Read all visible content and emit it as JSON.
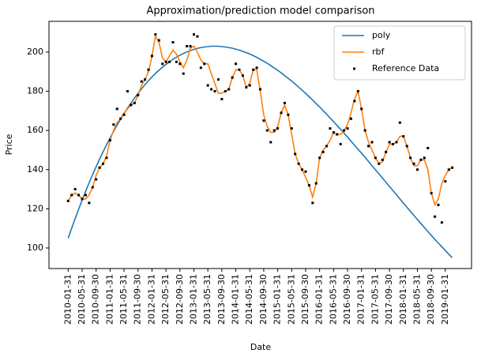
{
  "chart_data": {
    "type": "line",
    "title": "Approximation/prediction model comparison",
    "xlabel": "Date",
    "ylabel": "Price",
    "x": [
      "2010-01-31",
      "2010-02-28",
      "2010-03-31",
      "2010-04-30",
      "2010-05-31",
      "2010-06-30",
      "2010-07-31",
      "2010-08-31",
      "2010-09-30",
      "2010-10-31",
      "2010-11-30",
      "2010-12-31",
      "2011-01-31",
      "2011-02-28",
      "2011-03-31",
      "2011-04-30",
      "2011-05-31",
      "2011-06-30",
      "2011-07-31",
      "2011-08-31",
      "2011-09-30",
      "2011-10-31",
      "2011-11-30",
      "2011-12-31",
      "2012-01-31",
      "2012-02-29",
      "2012-03-31",
      "2012-04-30",
      "2012-05-31",
      "2012-06-30",
      "2012-07-31",
      "2012-08-31",
      "2012-09-30",
      "2012-10-31",
      "2012-11-30",
      "2012-12-31",
      "2013-01-31",
      "2013-02-28",
      "2013-03-31",
      "2013-04-30",
      "2013-05-31",
      "2013-06-30",
      "2013-07-31",
      "2013-08-31",
      "2013-09-30",
      "2013-10-31",
      "2013-11-30",
      "2013-12-31",
      "2014-01-31",
      "2014-02-28",
      "2014-03-31",
      "2014-04-30",
      "2014-05-31",
      "2014-06-30",
      "2014-07-31",
      "2014-08-31",
      "2014-09-30",
      "2014-10-31",
      "2014-11-30",
      "2014-12-31",
      "2015-01-31",
      "2015-02-28",
      "2015-03-31",
      "2015-04-30",
      "2015-05-31",
      "2015-06-30",
      "2015-07-31",
      "2015-08-31",
      "2015-09-30",
      "2015-10-31",
      "2015-11-30",
      "2015-12-31",
      "2016-01-31",
      "2016-02-29",
      "2016-03-31",
      "2016-04-30",
      "2016-05-31",
      "2016-06-30",
      "2016-07-31",
      "2016-08-31",
      "2016-09-30",
      "2016-10-31",
      "2016-11-30",
      "2016-12-31",
      "2017-01-31",
      "2017-02-28",
      "2017-03-31",
      "2017-04-30",
      "2017-05-31",
      "2017-06-30",
      "2017-07-31",
      "2017-08-31",
      "2017-09-30",
      "2017-10-31",
      "2017-11-30",
      "2017-12-31",
      "2018-01-31",
      "2018-02-28",
      "2018-03-31",
      "2018-04-30",
      "2018-05-31",
      "2018-06-30",
      "2018-07-31",
      "2018-08-31",
      "2018-09-30",
      "2018-10-31",
      "2018-11-30",
      "2018-12-31",
      "2019-01-31",
      "2019-02-28",
      "2019-03-31"
    ],
    "xticks": [
      "2010-01-31",
      "2010-05-31",
      "2010-09-30",
      "2011-01-31",
      "2011-05-31",
      "2011-09-30",
      "2012-01-31",
      "2012-05-31",
      "2012-09-30",
      "2013-01-31",
      "2013-05-31",
      "2013-09-30",
      "2014-01-31",
      "2014-05-31",
      "2014-09-30",
      "2015-01-31",
      "2015-05-31",
      "2015-09-30",
      "2016-01-31",
      "2016-05-31",
      "2016-09-30",
      "2017-01-31",
      "2017-05-31",
      "2017-09-30",
      "2018-01-31",
      "2018-05-31",
      "2018-09-30",
      "2019-01-31"
    ],
    "ylim": [
      89.5,
      215.7
    ],
    "yticks": [
      100,
      120,
      140,
      160,
      180,
      200
    ],
    "legend": "upper right",
    "series": [
      {
        "name": "poly",
        "type": "line",
        "color": "#1f77b4",
        "values": [
          105.0,
          110.1,
          115.0,
          119.8,
          124.5,
          128.9,
          133.3,
          137.5,
          141.5,
          145.4,
          149.1,
          152.7,
          156.2,
          159.5,
          162.7,
          165.7,
          168.6,
          171.4,
          174.0,
          176.6,
          178.9,
          181.2,
          183.4,
          185.4,
          187.3,
          189.1,
          190.7,
          192.3,
          193.7,
          195.0,
          196.3,
          197.4,
          198.4,
          199.3,
          200.1,
          200.8,
          201.4,
          201.9,
          202.3,
          202.6,
          202.8,
          203.0,
          203.0,
          203.0,
          202.8,
          202.6,
          202.3,
          202.0,
          201.5,
          201.0,
          200.4,
          199.7,
          199.0,
          198.2,
          197.3,
          196.3,
          195.3,
          194.3,
          193.1,
          191.9,
          190.7,
          189.4,
          188.0,
          186.6,
          185.2,
          183.7,
          182.1,
          180.5,
          178.9,
          177.2,
          175.5,
          173.7,
          172.0,
          170.1,
          168.3,
          166.4,
          164.5,
          162.5,
          160.6,
          158.6,
          156.6,
          154.5,
          152.5,
          150.4,
          148.4,
          146.3,
          144.2,
          142.0,
          139.9,
          137.8,
          135.7,
          133.5,
          131.4,
          129.3,
          127.2,
          125.0,
          122.9,
          120.8,
          118.7,
          116.6,
          114.5,
          112.5,
          110.4,
          108.4,
          106.4,
          104.4,
          102.5,
          100.6,
          98.7,
          96.8,
          95.0
        ]
      },
      {
        "name": "rbf",
        "type": "line",
        "color": "#ff7f0e",
        "values": [
          124,
          127,
          128,
          127,
          125,
          125,
          127,
          131,
          137,
          141,
          143,
          147,
          155,
          160,
          164,
          166,
          169,
          171,
          173,
          174,
          178,
          183,
          186,
          190,
          198,
          208,
          205,
          197,
          195,
          198,
          201,
          199,
          195,
          192,
          196,
          202,
          203,
          200,
          196,
          194,
          194,
          189,
          184,
          179,
          179,
          180,
          181,
          187,
          191,
          191,
          188,
          182,
          184,
          191,
          191,
          180,
          168,
          162,
          159,
          159,
          162,
          169,
          173,
          168,
          158,
          148,
          143,
          140,
          136,
          132,
          126,
          133,
          146,
          150,
          152,
          155,
          159,
          158,
          158,
          160,
          163,
          169,
          176,
          180,
          171,
          160,
          154,
          150,
          146,
          143,
          144,
          149,
          153,
          153,
          154,
          157,
          157,
          152,
          146,
          142,
          142,
          145,
          145,
          140,
          128,
          122,
          125,
          133,
          137,
          140,
          141
        ]
      },
      {
        "name": "Reference Data",
        "type": "scatter",
        "color": "#000000",
        "values": [
          124,
          127,
          130,
          127,
          125,
          127,
          123,
          131,
          135,
          141,
          143,
          146,
          155,
          163,
          171,
          166,
          168,
          180,
          173,
          174,
          178,
          185,
          186,
          191,
          198,
          209,
          206,
          194,
          195,
          195,
          205,
          195,
          194,
          189,
          203,
          203,
          209,
          208,
          192,
          194,
          183,
          181,
          180,
          186,
          176,
          180,
          181,
          187,
          194,
          191,
          188,
          182,
          183,
          191,
          192,
          181,
          165,
          160,
          154,
          160,
          161,
          169,
          174,
          168,
          161,
          148,
          143,
          140,
          139,
          132,
          123,
          133,
          146,
          149,
          152,
          161,
          159,
          158,
          153,
          160,
          161,
          166,
          175,
          180,
          171,
          160,
          152,
          154,
          146,
          143,
          145,
          149,
          154,
          153,
          154,
          164,
          157,
          152,
          146,
          143,
          140,
          145,
          146,
          151,
          128,
          116,
          122,
          113,
          134,
          140,
          141
        ]
      }
    ]
  }
}
